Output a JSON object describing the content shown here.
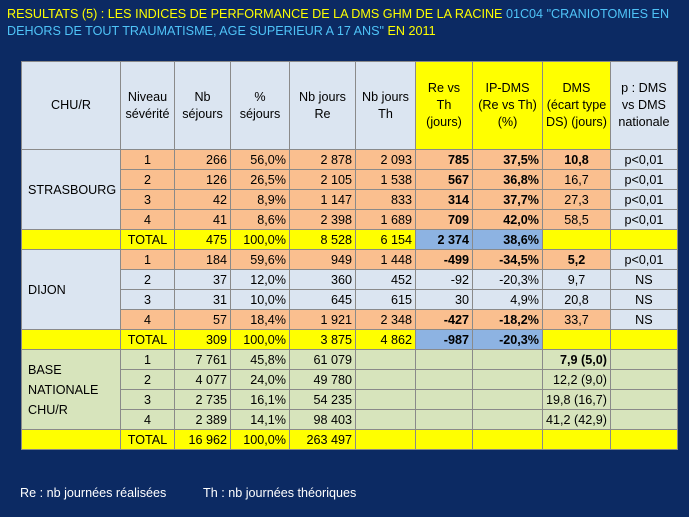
{
  "title": {
    "part1": "RESULTATS (5) : LES INDICES DE PERFORMANCE DE LA DMS GHM DE LA RACINE ",
    "part2": "01C04 \"CRANIOTOMIES EN DEHORS DE TOUT TRAUMATISME, AGE SUPERIEUR A 17 ANS\"",
    "part3": " EN 2011"
  },
  "headers": {
    "chu": "CHU/R",
    "niveau": "Niveau sévérité",
    "nb": "Nb séjours",
    "pct": "% séjours",
    "re": "Nb jours Re",
    "th": "Nb jours Th",
    "revsth": "Re vs Th (jours)",
    "ipdms": "IP-DMS (Re vs Th) (%)",
    "dms": "DMS (écart type DS) (jours)",
    "p": "p : DMS vs DMS nationale"
  },
  "strasbourg": {
    "name": "STRASBOURG",
    "rows": [
      {
        "niv": "1",
        "nb": "266",
        "pct": "56,0%",
        "re": "2 878",
        "th": "2 093",
        "rvt": "785",
        "ip": "37,5%",
        "dms": "10,8",
        "p": "p<0,01"
      },
      {
        "niv": "2",
        "nb": "126",
        "pct": "26,5%",
        "re": "2 105",
        "th": "1 538",
        "rvt": "567",
        "ip": "36,8%",
        "dms": "16,7",
        "p": "p<0,01"
      },
      {
        "niv": "3",
        "nb": "42",
        "pct": "8,9%",
        "re": "1 147",
        "th": "833",
        "rvt": "314",
        "ip": "37,7%",
        "dms": "27,3",
        "p": "p<0,01"
      },
      {
        "niv": "4",
        "nb": "41",
        "pct": "8,6%",
        "re": "2 398",
        "th": "1 689",
        "rvt": "709",
        "ip": "42,0%",
        "dms": "58,5",
        "p": "p<0,01"
      }
    ],
    "total": {
      "label": "TOTAL",
      "nb": "475",
      "pct": "100,0%",
      "re": "8 528",
      "th": "6 154",
      "rvt": "2 374",
      "ip": "38,6%"
    }
  },
  "dijon": {
    "name": "DIJON",
    "rows": [
      {
        "niv": "1",
        "nb": "184",
        "pct": "59,6%",
        "re": "949",
        "th": "1 448",
        "rvt": "-499",
        "ip": "-34,5%",
        "dms": "5,2",
        "p": "p<0,01"
      },
      {
        "niv": "2",
        "nb": "37",
        "pct": "12,0%",
        "re": "360",
        "th": "452",
        "rvt": "-92",
        "ip": "-20,3%",
        "dms": "9,7",
        "p": "NS"
      },
      {
        "niv": "3",
        "nb": "31",
        "pct": "10,0%",
        "re": "645",
        "th": "615",
        "rvt": "30",
        "ip": "4,9%",
        "dms": "20,8",
        "p": "NS"
      },
      {
        "niv": "4",
        "nb": "57",
        "pct": "18,4%",
        "re": "1 921",
        "th": "2 348",
        "rvt": "-427",
        "ip": "-18,2%",
        "dms": "33,7",
        "p": "NS"
      }
    ],
    "total": {
      "label": "TOTAL",
      "nb": "309",
      "pct": "100,0%",
      "re": "3 875",
      "th": "4 862",
      "rvt": "-987",
      "ip": "-20,3%"
    }
  },
  "base": {
    "name_l1": "BASE",
    "name_l2": "NATIONALE",
    "name_l3": "CHU/R",
    "rows": [
      {
        "niv": "1",
        "nb": "7 761",
        "pct": "45,8%",
        "re": "61 079",
        "dms": "7,9 (5,0)"
      },
      {
        "niv": "2",
        "nb": "4 077",
        "pct": "24,0%",
        "re": "49 780",
        "dms": "12,2 (9,0)"
      },
      {
        "niv": "3",
        "nb": "2 735",
        "pct": "16,1%",
        "re": "54 235",
        "dms": "19,8 (16,7)"
      },
      {
        "niv": "4",
        "nb": "2 389",
        "pct": "14,1%",
        "re": "98 403",
        "dms": "41,2 (42,9)"
      }
    ],
    "total": {
      "label": "TOTAL",
      "nb": "16 962",
      "pct": "100,0%",
      "re": "263 497"
    }
  },
  "footer": {
    "re": "Re : nb journées réalisées",
    "th": "Th : nb journées théoriques"
  }
}
